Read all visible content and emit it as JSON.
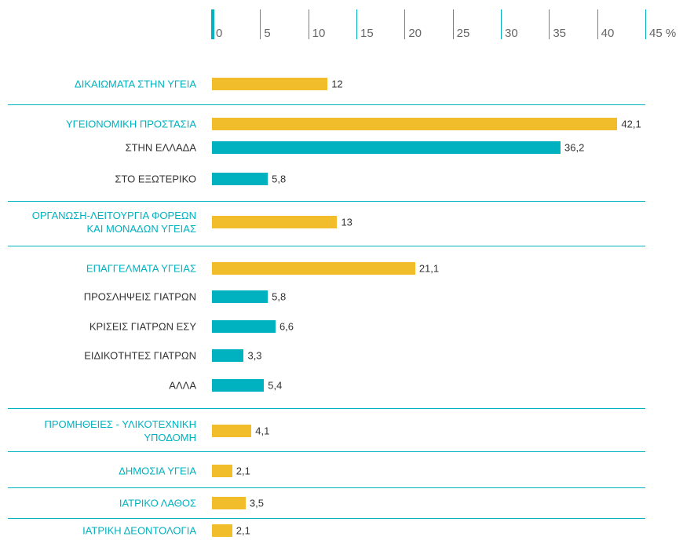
{
  "chart_data": {
    "type": "bar",
    "orientation": "horizontal",
    "categories": [
      "ΔΙΚΑΙΩΜΑΤΑ ΣΤΗΝ ΥΓΕΙΑ",
      "ΥΓΕΙΟΝΟΜΙΚΗ ΠΡΟΣΤΑΣΙΑ",
      "ΣΤΗΝ ΕΛΛΑΔΑ",
      "ΣΤΟ ΕΞΩΤΕΡΙΚΟ",
      "ΟΡΓΑΝΩΣΗ-ΛΕΙΤΟΥΡΓΙΑ ΦΟΡΕΩΝ\nΚΑΙ ΜΟΝΑΔΩΝ ΥΓΕΙΑΣ",
      "ΕΠΑΓΓΕΛΜΑΤΑ ΥΓΕΙΑΣ",
      "ΠΡΟΣΛΗΨΕΙΣ ΓΙΑΤΡΩΝ",
      "ΚΡΙΣΕΙΣ ΓΙΑΤΡΩΝ ΕΣΥ",
      "ΕΙΔΙΚΟΤΗΤΕΣ ΓΙΑΤΡΩΝ",
      "ΑΛΛΑ",
      "ΠΡΟΜΗΘΕΙΕΣ - ΥΛΙΚΟΤΕΧΝΙΚΗ\nΥΠΟΔΟΜΗ",
      "ΔΗΜΟΣΙΑ ΥΓΕΙΑ",
      "ΙΑΤΡΙΚΟ ΛΑΘΟΣ",
      "ΙΑΤΡΙΚΗ ΔΕΟΝΤΟΛΟΓΙΑ"
    ],
    "values": [
      12,
      42.1,
      36.2,
      5.8,
      13,
      21.1,
      5.8,
      6.6,
      3.3,
      5.4,
      4.1,
      2.1,
      3.5,
      2.1
    ],
    "value_labels": [
      "12",
      "42,1",
      "36,2",
      "5,8",
      "13",
      "21,1",
      "5,8",
      "6,6",
      "3,3",
      "5,4",
      "4,1",
      "2,1",
      "3,5",
      "2,1"
    ],
    "colors": [
      "#f2bd2b",
      "#f2bd2b",
      "#00b1bf",
      "#00b1bf",
      "#f2bd2b",
      "#f2bd2b",
      "#00b1bf",
      "#00b1bf",
      "#00b1bf",
      "#00b1bf",
      "#f2bd2b",
      "#f2bd2b",
      "#f2bd2b",
      "#f2bd2b"
    ],
    "xlim": [
      0,
      45
    ],
    "xticks": [
      0,
      5,
      10,
      15,
      20,
      25,
      30,
      35,
      40,
      {
        "value": 45,
        "label": "45 %"
      }
    ]
  }
}
